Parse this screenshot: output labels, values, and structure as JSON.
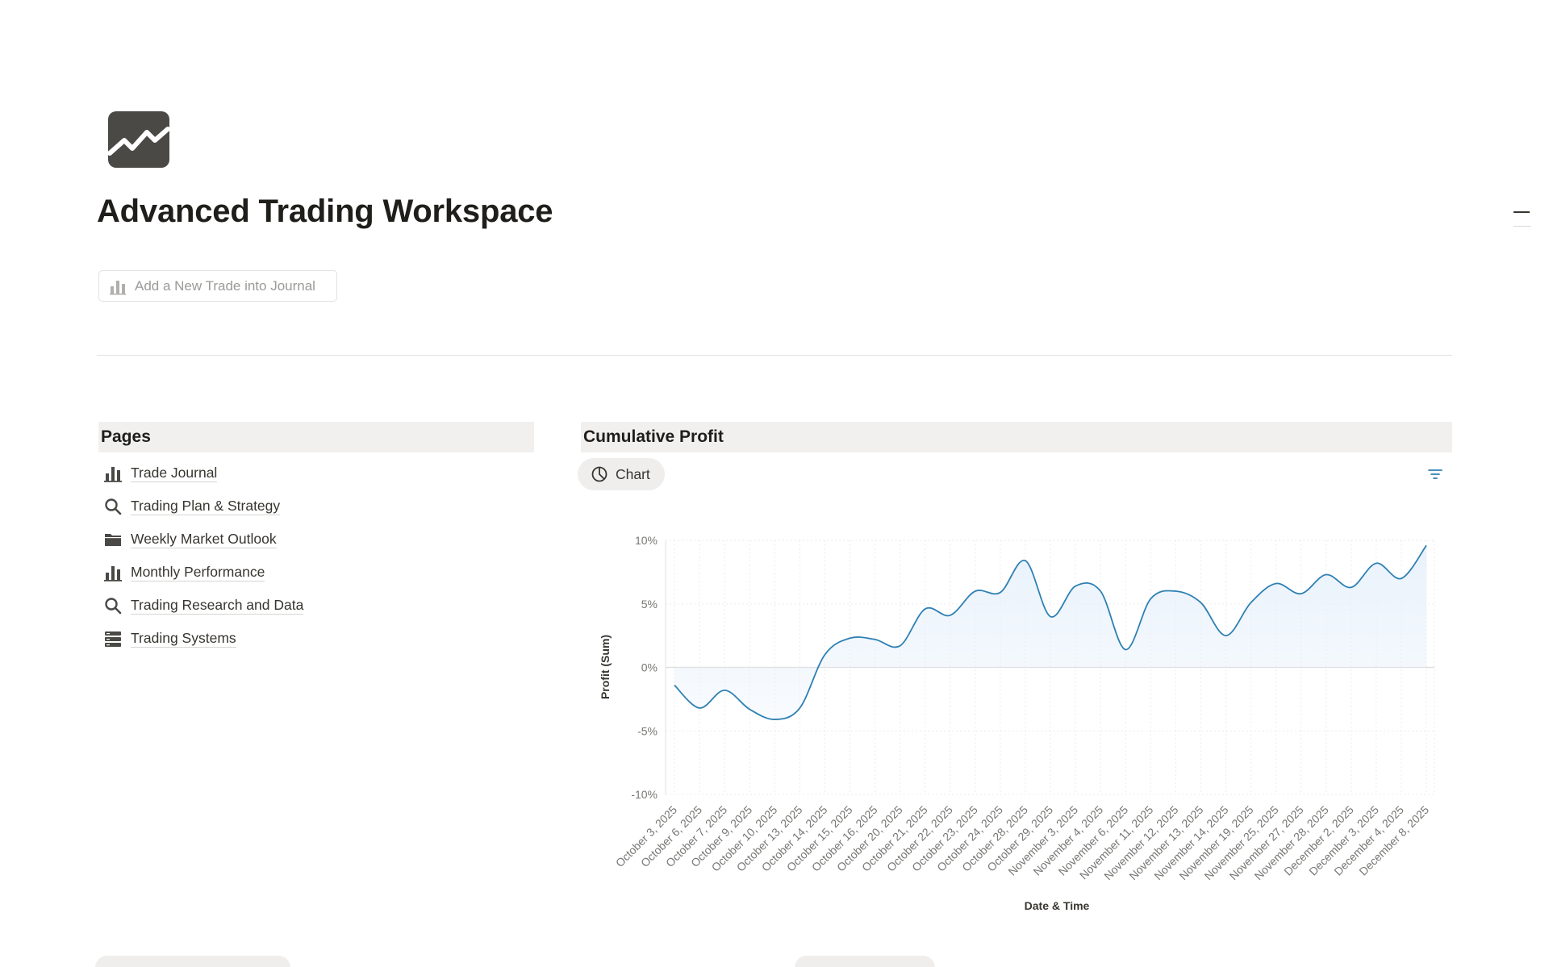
{
  "page": {
    "title": "Advanced Trading Workspace",
    "icon": "trending-chart-icon"
  },
  "add_trade_button": {
    "label": "Add a New Trade into Journal",
    "icon": "bar-chart-icon"
  },
  "pages_section": {
    "title": "Pages",
    "items": [
      {
        "label": "Trade Journal",
        "icon": "bar-chart-icon"
      },
      {
        "label": "Trading Plan & Strategy",
        "icon": "search-icon"
      },
      {
        "label": "Weekly Market Outlook",
        "icon": "folder-icon"
      },
      {
        "label": "Monthly Performance",
        "icon": "bar-chart-icon"
      },
      {
        "label": "Trading Research and Data",
        "icon": "search-icon"
      },
      {
        "label": "Trading Systems",
        "icon": "database-icon"
      }
    ]
  },
  "profit_section": {
    "title": "Cumulative Profit",
    "view_tab_label": "Chart",
    "view_tab_icon": "pie-chart-icon",
    "filter_icon": "filter-icon"
  },
  "chart_data": {
    "type": "area",
    "xlabel": "Date & Time",
    "ylabel": "Profit (Sum)",
    "ylim": [
      -10,
      10
    ],
    "yticks": [
      "10%",
      "5%",
      "0%",
      "-5%",
      "-10%"
    ],
    "ytick_values": [
      10,
      5,
      0,
      -5,
      -10
    ],
    "grid": true,
    "line_color": "#2e80b3",
    "fill_color": "#e6f0fb",
    "categories": [
      "October 3, 2025",
      "October 6, 2025",
      "October 7, 2025",
      "October 9, 2025",
      "October 10, 2025",
      "October 13, 2025",
      "October 14, 2025",
      "October 15, 2025",
      "October 16, 2025",
      "October 20, 2025",
      "October 21, 2025",
      "October 22, 2025",
      "October 23, 2025",
      "October 24, 2025",
      "October 28, 2025",
      "October 29, 2025",
      "November 3, 2025",
      "November 4, 2025",
      "November 6, 2025",
      "November 11, 2025",
      "November 12, 2025",
      "November 13, 2025",
      "November 14, 2025",
      "November 19, 2025",
      "November 25, 2025",
      "November 27, 2025",
      "November 28, 2025",
      "December 2, 2025",
      "December 3, 2025",
      "December 4, 2025",
      "December 8, 2025"
    ],
    "values": [
      -1.4,
      -3.2,
      -1.8,
      -3.3,
      -4.1,
      -3.2,
      1.0,
      2.3,
      2.2,
      1.7,
      4.6,
      4.1,
      6.0,
      5.9,
      8.4,
      4.0,
      6.4,
      6.0,
      1.4,
      5.4,
      6.0,
      5.1,
      2.5,
      5.1,
      6.6,
      5.8,
      7.3,
      6.3,
      8.2,
      7.0,
      9.6
    ]
  },
  "bottom": {
    "pill_1": "",
    "pill_2": ""
  }
}
